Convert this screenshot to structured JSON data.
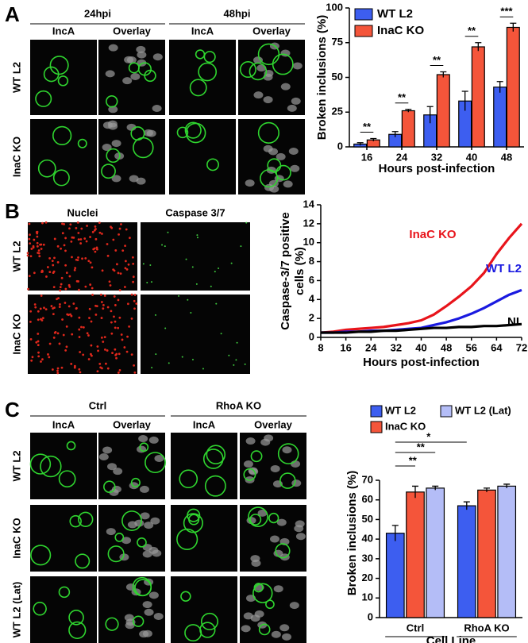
{
  "figure": {
    "panels": [
      "A",
      "B",
      "C"
    ],
    "a_images": {
      "times": [
        "24hpi",
        "48hpi"
      ],
      "columns": [
        "IncA",
        "Overlay",
        "IncA",
        "Overlay"
      ],
      "rows": [
        "WT L2",
        "InaC KO"
      ]
    },
    "b_images": {
      "columns": [
        "Nuclei",
        "Caspase 3/7"
      ],
      "rows": [
        "WT L2",
        "InaC KO"
      ]
    },
    "c_images": {
      "groups": [
        "Ctrl",
        "RhoA KO"
      ],
      "columns": [
        "IncA",
        "Overlay",
        "IncA",
        "Overlay"
      ],
      "rows": [
        "WT L2",
        "InaC KO",
        "WT L2 (Lat)"
      ]
    }
  },
  "chart_data": [
    {
      "type": "bar",
      "ylabel": "Broken inclusions (%)",
      "xlabel": "Hours post-infection",
      "categories": [
        "16",
        "24",
        "32",
        "40",
        "48"
      ],
      "series": [
        {
          "name": "WT L2",
          "color": "#3d5ef0",
          "values": [
            2,
            9,
            23,
            33,
            43
          ],
          "errors": [
            1,
            2,
            6,
            7,
            4
          ]
        },
        {
          "name": "InaC KO",
          "color": "#f4553a",
          "values": [
            5,
            26,
            52,
            72,
            86
          ],
          "errors": [
            1,
            1,
            2,
            3,
            3
          ]
        }
      ],
      "significance": [
        "**",
        "**",
        "**",
        "**",
        "***"
      ],
      "ylim": [
        0,
        100
      ],
      "yticks": [
        0,
        25,
        50,
        75,
        100
      ]
    },
    {
      "type": "line",
      "ylabel": [
        "Caspase-3/7 positive",
        "cells (%)"
      ],
      "xlabel": "Hours post-infection",
      "x": [
        8,
        12,
        16,
        20,
        24,
        28,
        32,
        36,
        40,
        44,
        48,
        52,
        56,
        60,
        64,
        68,
        72
      ],
      "series": [
        {
          "name": "InaC KO",
          "color": "#e8141b",
          "values": [
            0.5,
            0.6,
            0.8,
            0.9,
            1.0,
            1.1,
            1.3,
            1.5,
            1.8,
            2.4,
            3.3,
            4.3,
            5.4,
            6.8,
            8.8,
            10.5,
            12.0
          ]
        },
        {
          "name": "WT L2",
          "color": "#1a1ae0",
          "values": [
            0.5,
            0.5,
            0.6,
            0.6,
            0.7,
            0.7,
            0.8,
            0.9,
            1.0,
            1.3,
            1.6,
            2.0,
            2.5,
            3.1,
            3.8,
            4.5,
            5.0
          ]
        },
        {
          "name": "NI",
          "color": "#000000",
          "values": [
            0.5,
            0.5,
            0.5,
            0.6,
            0.6,
            0.7,
            0.7,
            0.8,
            0.9,
            1.0,
            1.0,
            1.1,
            1.1,
            1.2,
            1.2,
            1.3,
            1.4
          ]
        }
      ],
      "xlim": [
        8,
        72
      ],
      "xticks": [
        8,
        16,
        24,
        32,
        40,
        48,
        56,
        64,
        72
      ],
      "ylim": [
        0,
        14
      ],
      "yticks": [
        0,
        2,
        4,
        6,
        8,
        10,
        12,
        14
      ]
    },
    {
      "type": "bar",
      "ylabel": "Broken inclusions (%)",
      "xlabel": "Cell Line",
      "categories": [
        "Ctrl",
        "RhoA KO"
      ],
      "series": [
        {
          "name": "WT L2",
          "color": "#3d5ef0",
          "values": [
            43,
            57
          ],
          "errors": [
            4,
            2
          ]
        },
        {
          "name": "InaC KO",
          "color": "#f4553a",
          "values": [
            64,
            65
          ],
          "errors": [
            3,
            1
          ]
        },
        {
          "name": "WT L2 (Lat)",
          "color": "#b4bdf7",
          "values": [
            66,
            67
          ],
          "errors": [
            1,
            1
          ]
        }
      ],
      "significance": [
        "**",
        "**",
        "*"
      ],
      "ylim": [
        0,
        70
      ],
      "yticks": [
        0,
        10,
        20,
        30,
        40,
        50,
        60,
        70
      ]
    }
  ]
}
